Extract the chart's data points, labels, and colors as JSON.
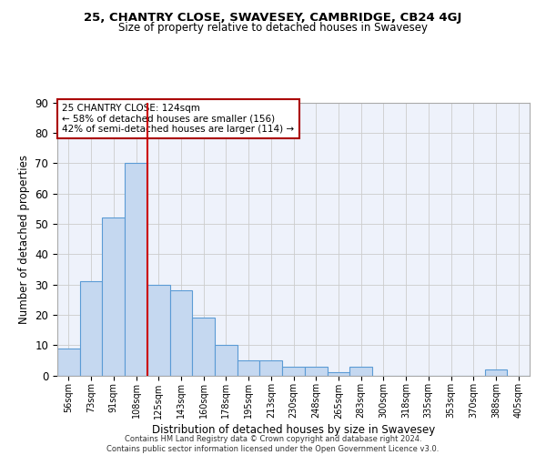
{
  "title": "25, CHANTRY CLOSE, SWAVESEY, CAMBRIDGE, CB24 4GJ",
  "subtitle": "Size of property relative to detached houses in Swavesey",
  "xlabel": "Distribution of detached houses by size in Swavesey",
  "ylabel": "Number of detached properties",
  "bar_labels": [
    "56sqm",
    "73sqm",
    "91sqm",
    "108sqm",
    "125sqm",
    "143sqm",
    "160sqm",
    "178sqm",
    "195sqm",
    "213sqm",
    "230sqm",
    "248sqm",
    "265sqm",
    "283sqm",
    "300sqm",
    "318sqm",
    "335sqm",
    "353sqm",
    "370sqm",
    "388sqm",
    "405sqm"
  ],
  "bar_values": [
    9,
    31,
    52,
    70,
    30,
    28,
    19,
    10,
    5,
    5,
    3,
    3,
    1,
    3,
    0,
    0,
    0,
    0,
    0,
    2,
    0
  ],
  "bar_color": "#c5d8f0",
  "bar_edge_color": "#5b9bd5",
  "vline_x": 3.5,
  "vline_color": "#cc0000",
  "ylim": [
    0,
    90
  ],
  "yticks": [
    0,
    10,
    20,
    30,
    40,
    50,
    60,
    70,
    80,
    90
  ],
  "annotation_text": "25 CHANTRY CLOSE: 124sqm\n← 58% of detached houses are smaller (156)\n42% of semi-detached houses are larger (114) →",
  "annotation_box_color": "#ffffff",
  "annotation_box_edge": "#aa0000",
  "bg_color": "#eef2fb",
  "grid_color": "#cccccc",
  "footer_line1": "Contains HM Land Registry data © Crown copyright and database right 2024.",
  "footer_line2": "Contains public sector information licensed under the Open Government Licence v3.0."
}
